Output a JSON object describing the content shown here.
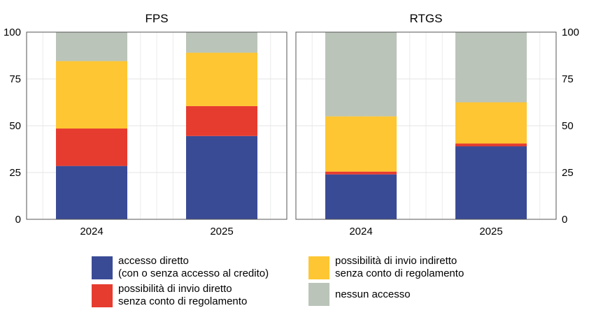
{
  "chart_data": [
    {
      "type": "bar",
      "stacked": true,
      "title": "FPS",
      "categories": [
        "2024",
        "2025"
      ],
      "yticks": [
        "0",
        "25",
        "50",
        "75",
        "100"
      ],
      "ylim": [
        0,
        100
      ],
      "grid": true,
      "series": [
        {
          "key": "diretto",
          "values": [
            28.5,
            44.5
          ]
        },
        {
          "key": "invio_diretto",
          "values": [
            20,
            16
          ]
        },
        {
          "key": "invio_indiretto",
          "values": [
            36,
            28.5
          ]
        },
        {
          "key": "nessuno",
          "values": [
            15.5,
            11
          ]
        }
      ]
    },
    {
      "type": "bar",
      "stacked": true,
      "title": "RTGS",
      "categories": [
        "2024",
        "2025"
      ],
      "yticks": [
        "0",
        "25",
        "50",
        "75",
        "100"
      ],
      "ylim": [
        0,
        100
      ],
      "grid": true,
      "series": [
        {
          "key": "diretto",
          "values": [
            24,
            39
          ]
        },
        {
          "key": "invio_diretto",
          "values": [
            1.5,
            1.5
          ]
        },
        {
          "key": "invio_indiretto",
          "values": [
            29.5,
            22
          ]
        },
        {
          "key": "nessuno",
          "values": [
            45,
            37.5
          ]
        }
      ]
    }
  ],
  "legend": [
    {
      "key": "diretto",
      "label": "accesso diretto\n(con o senza accesso al credito)",
      "color": "#3a4b96"
    },
    {
      "key": "invio_diretto",
      "label": "possibilità di invio diretto\nsenza conto di regolamento",
      "color": "#e63c2f"
    },
    {
      "key": "invio_indiretto",
      "label": "possibilità di invio indiretto\nsenza conto di regolamento",
      "color": "#fec632"
    },
    {
      "key": "nessuno",
      "label": "nessun accesso",
      "color": "#bbc4b9"
    }
  ]
}
